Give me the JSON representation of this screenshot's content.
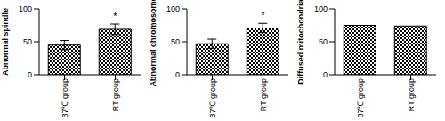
{
  "chart_data": [
    {
      "type": "bar",
      "y_label": "Abnormal spindle",
      "categories": [
        "37℃ group",
        "RT group"
      ],
      "values": [
        45,
        69
      ],
      "errors": [
        7,
        8
      ],
      "color": "#000000",
      "ylim": [
        0,
        100
      ],
      "yticks": [
        0,
        50,
        100
      ],
      "annotations": [
        {
          "category": "RT group",
          "text": "*"
        }
      ]
    },
    {
      "type": "bar",
      "y_label": "Abnormal chromosome",
      "categories": [
        "37℃ group",
        "RT group"
      ],
      "values": [
        47,
        71
      ],
      "errors": [
        7,
        7
      ],
      "color": "#000000",
      "ylim": [
        0,
        100
      ],
      "yticks": [
        0,
        50,
        100
      ],
      "annotations": [
        {
          "category": "RT group",
          "text": "*"
        }
      ]
    },
    {
      "type": "bar",
      "y_label": "Diffused mitochondria",
      "categories": [
        "37℃ group",
        "RT group"
      ],
      "values": [
        75,
        74
      ],
      "color": "#000000",
      "ylim": [
        0,
        100
      ],
      "yticks": [
        0,
        50,
        100
      ]
    }
  ]
}
